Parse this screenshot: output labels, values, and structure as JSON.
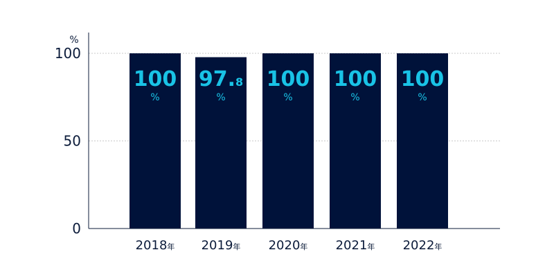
{
  "chart_data": {
    "type": "bar",
    "categories": [
      "2018年",
      "2019年",
      "2020年",
      "2021年",
      "2022年"
    ],
    "values": [
      100,
      97.8,
      100,
      100,
      100
    ],
    "data_labels": [
      {
        "main": "100",
        "decimal": "",
        "unit": "%"
      },
      {
        "main": "97.",
        "decimal": "8",
        "unit": "%"
      },
      {
        "main": "100",
        "decimal": "",
        "unit": "%"
      },
      {
        "main": "100",
        "decimal": "",
        "unit": "%"
      },
      {
        "main": "100",
        "decimal": "",
        "unit": "%"
      }
    ],
    "title": "",
    "xlabel": "",
    "ylabel": "",
    "y_unit": "%",
    "ylim": [
      0,
      100
    ],
    "yticks": [
      0,
      50,
      100
    ],
    "grid": true,
    "legend": "none"
  },
  "colors": {
    "bar": "#00123a",
    "value_label": "#19c3e6",
    "axis": "#0b1b3a",
    "grid": "#c8c8c8"
  }
}
